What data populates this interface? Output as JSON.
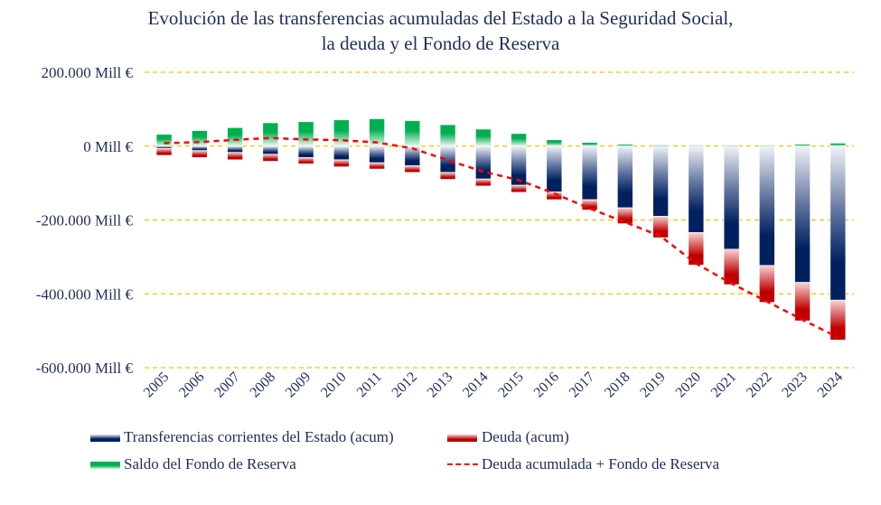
{
  "chart_data": {
    "type": "bar",
    "title": "Evolución de las transferencias acumuladas del Estado a la Seguridad Social,",
    "subtitle": "la deuda y el Fondo de Reserva",
    "xlabel": "",
    "ylabel": "",
    "ylim": [
      -600000,
      200000
    ],
    "yticks": [
      200000,
      0,
      -200000,
      -400000,
      -600000
    ],
    "ytick_labels": [
      "200.000 Mill €",
      "0 Mill €",
      "-200.000 Mill €",
      "-400.000 Mill €",
      "-600.000 Mill €"
    ],
    "grid": true,
    "stacked": true,
    "legend_position": "bottom",
    "categories": [
      "2005",
      "2006",
      "2007",
      "2008",
      "2009",
      "2010",
      "2011",
      "2012",
      "2013",
      "2014",
      "2015",
      "2016",
      "2017",
      "2018",
      "2019",
      "2020",
      "2021",
      "2022",
      "2023",
      "2024"
    ],
    "series": [
      {
        "name": "Transferencias corrientes del Estado (acum)",
        "type": "bar",
        "color": "#002060",
        "values": [
          -6000,
          -12000,
          -17000,
          -22000,
          -31000,
          -37000,
          -45000,
          -53000,
          -71000,
          -89000,
          -106000,
          -124000,
          -145000,
          -167000,
          -190000,
          -234000,
          -279000,
          -323000,
          -369000,
          -417000
        ]
      },
      {
        "name": "Deuda (acum)",
        "type": "bar",
        "color": "#C00000",
        "values": [
          -19000,
          -19000,
          -20000,
          -19000,
          -17000,
          -19000,
          -17000,
          -18000,
          -19000,
          -19000,
          -19000,
          -21000,
          -28000,
          -43000,
          -58000,
          -88000,
          -96000,
          -100000,
          -104000,
          -108000
        ]
      },
      {
        "name": "Saldo del Fondo de Reserva",
        "type": "bar",
        "color": "#00B050",
        "values": [
          32000,
          42000,
          50000,
          63000,
          66000,
          71000,
          74000,
          69000,
          58000,
          46000,
          34000,
          17000,
          10000,
          5000,
          3000,
          2000,
          2000,
          2000,
          5000,
          8000
        ]
      },
      {
        "name": "Deuda acumulada + Fondo de Reserva",
        "type": "line",
        "style": "dashed",
        "color": "#FF0000",
        "values": [
          8000,
          11000,
          17000,
          22000,
          18000,
          16000,
          10000,
          -6000,
          -38000,
          -69000,
          -92000,
          -128000,
          -169000,
          -206000,
          -244000,
          -318000,
          -372000,
          -421000,
          -470000,
          -518000
        ]
      }
    ],
    "gridline_color": "#FFC000"
  }
}
